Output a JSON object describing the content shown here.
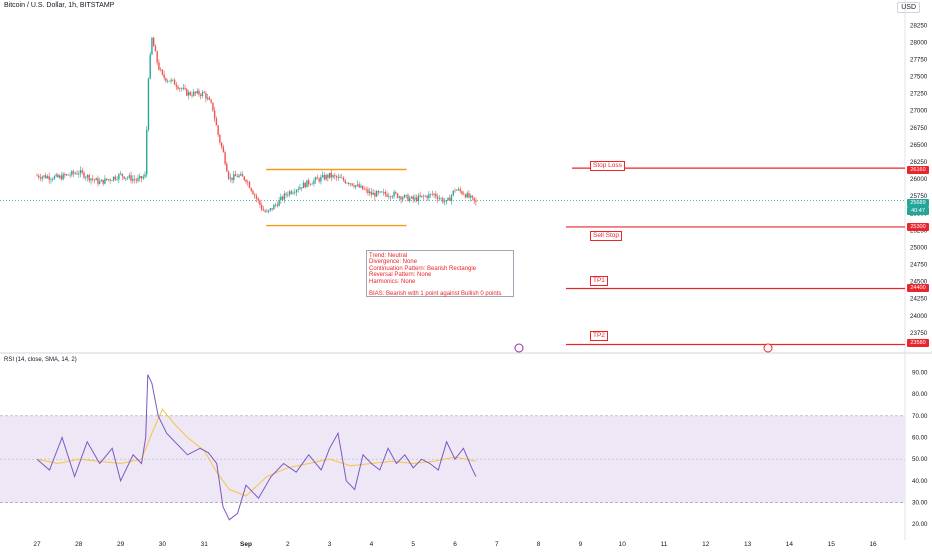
{
  "header": {
    "symbol_title": "Bitcoin / U.S. Dollar, 1h, BITSTAMP",
    "currency": "USD"
  },
  "rsi_header": "RSI (14, close, SMA, 14, 2)",
  "colors": {
    "up": "#26a69a",
    "down": "#ef5350",
    "level_red": "#e8262c",
    "range_orange": "#f59a1b",
    "rsi_line": "#7e57c2",
    "rsi_sma": "#f5c542",
    "band_fill": "#ede7f6"
  },
  "annotation_box": {
    "lines": [
      "Trend: Neutral",
      "Divergence: None",
      "Continuation Pattern: Bearish Rectangle",
      "Reversal Pattern: None",
      "Harmonics: None",
      "",
      "BIAS: Bearish with 1 point against Bullish 0 points"
    ]
  },
  "levels": {
    "stop_loss": {
      "label": "Stop Loss",
      "price": 26160,
      "badge": "26160"
    },
    "sell_stop": {
      "label": "Sell Stop",
      "price": 25300,
      "badge": "25300"
    },
    "tp1": {
      "label": "TP1",
      "price": 24400,
      "badge": "24400"
    },
    "tp2": {
      "label": "TP2",
      "price": 23580,
      "badge": "23580"
    },
    "last_price": {
      "price": 25689,
      "badge": "25689",
      "sub": "40:47"
    }
  },
  "chart_data": [
    {
      "type": "candlestick",
      "title": "Bitcoin / U.S. Dollar, 1h, BITSTAMP",
      "ylim": [
        23500,
        28400
      ],
      "y_ticks": [
        23750,
        24000,
        24250,
        24500,
        24750,
        25000,
        25250,
        25500,
        25750,
        26000,
        26250,
        26500,
        26750,
        27000,
        27250,
        27500,
        27750,
        28000,
        28250
      ],
      "x_ticks": [
        "27",
        "28",
        "29",
        "30",
        "31",
        "Sep",
        "2",
        "3",
        "4",
        "5",
        "6",
        "7",
        "8",
        "9",
        "10",
        "11",
        "12",
        "13",
        "14",
        "15",
        "16"
      ],
      "close_series": {
        "x_days": [
          27.0,
          27.5,
          28.0,
          28.5,
          29.0,
          29.4,
          29.6,
          29.65,
          29.75,
          29.9,
          30.0,
          30.3,
          30.6,
          31.0,
          31.2,
          31.35,
          31.45,
          31.6,
          31.8,
          32.0,
          32.4,
          32.5,
          33.0,
          33.5,
          34.0,
          34.5,
          35.0,
          35.5,
          36.0,
          36.5,
          36.8,
          37.0,
          37.2,
          37.5
        ],
        "closes": [
          26050,
          26020,
          26100,
          25950,
          26060,
          25980,
          26050,
          27400,
          28050,
          27650,
          27500,
          27400,
          27250,
          27250,
          27050,
          26600,
          26400,
          26000,
          26050,
          26000,
          25550,
          25500,
          25800,
          25950,
          26050,
          25950,
          25780,
          25780,
          25700,
          25780,
          25650,
          25850,
          25800,
          25650
        ]
      },
      "rectangle_pattern": {
        "top": 26140,
        "bottom": 25320,
        "x_start": 32.6,
        "x_end": 35.6
      },
      "horizontal_levels": [
        {
          "name": "Stop Loss",
          "price": 26160
        },
        {
          "name": "Sell Stop",
          "price": 25300
        },
        {
          "name": "TP1",
          "price": 24400
        },
        {
          "name": "TP2",
          "price": 23580
        }
      ]
    },
    {
      "type": "line",
      "title": "RSI (14, close, SMA, 14, 2)",
      "ylim": [
        15,
        93
      ],
      "y_ticks": [
        20,
        30,
        40,
        50,
        60,
        70,
        80,
        90
      ],
      "band": [
        30,
        70
      ],
      "midline": 50,
      "series": [
        {
          "name": "RSI",
          "x_days": [
            27.0,
            27.3,
            27.6,
            27.9,
            28.2,
            28.5,
            28.8,
            29.0,
            29.3,
            29.5,
            29.6,
            29.65,
            29.75,
            29.9,
            30.1,
            30.3,
            30.6,
            30.9,
            31.1,
            31.3,
            31.45,
            31.6,
            31.8,
            32.0,
            32.3,
            32.6,
            32.9,
            33.2,
            33.5,
            33.8,
            34.0,
            34.2,
            34.4,
            34.6,
            34.8,
            35.0,
            35.2,
            35.4,
            35.6,
            35.8,
            36.0,
            36.2,
            36.4,
            36.6,
            36.8,
            37.0,
            37.2,
            37.4,
            37.5
          ],
          "values": [
            50,
            45,
            60,
            42,
            58,
            48,
            55,
            40,
            52,
            48,
            60,
            89,
            85,
            70,
            62,
            58,
            52,
            55,
            53,
            48,
            28,
            22,
            25,
            38,
            32,
            42,
            48,
            44,
            52,
            45,
            55,
            62,
            40,
            36,
            52,
            48,
            45,
            55,
            48,
            52,
            46,
            50,
            48,
            45,
            58,
            50,
            55,
            46,
            42
          ]
        },
        {
          "name": "RSI SMA",
          "x_days": [
            27.0,
            27.5,
            28.0,
            28.5,
            29.0,
            29.5,
            29.75,
            30.0,
            30.3,
            30.6,
            31.0,
            31.3,
            31.6,
            32.0,
            32.5,
            33.0,
            33.5,
            34.0,
            34.5,
            35.0,
            35.5,
            36.0,
            36.5,
            37.0,
            37.5
          ],
          "values": [
            50,
            48,
            50,
            49,
            48,
            50,
            62,
            73,
            66,
            60,
            54,
            44,
            36,
            33,
            42,
            46,
            48,
            50,
            47,
            48,
            49,
            48,
            49,
            51,
            49
          ]
        }
      ]
    }
  ]
}
